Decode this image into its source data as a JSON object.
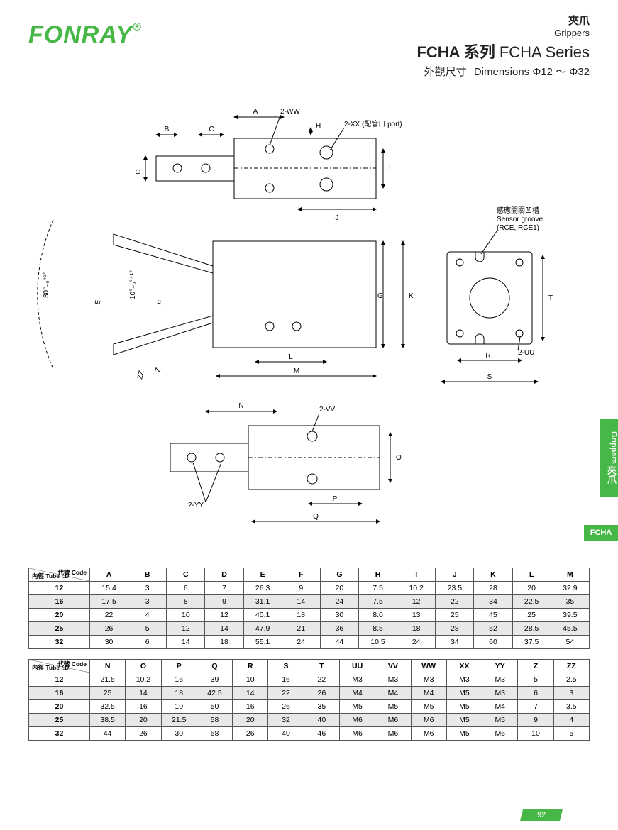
{
  "brand": "FONRAY",
  "brand_color": "#47b747",
  "header": {
    "cat_cn": "夾爪",
    "cat_en": "Grippers",
    "series_cn": "FCHA 系列",
    "series_en": "FCHA Series",
    "sub_cn": "外觀尺寸",
    "sub_en": "Dimensions  Φ12 ～ Φ32"
  },
  "side_tab": {
    "cn": "夾爪",
    "en": "Grippers"
  },
  "side_tab2": "FCHA",
  "page_number": "92",
  "diagram_labels": {
    "A": "A",
    "B": "B",
    "C": "C",
    "D": "D",
    "E": "E",
    "F": "F",
    "G": "G",
    "H": "H",
    "I": "I",
    "J": "J",
    "K": "K",
    "L": "L",
    "M": "M",
    "N": "N",
    "O": "O",
    "P": "P",
    "Q": "Q",
    "R": "R",
    "S": "S",
    "T": "T",
    "Z": "Z",
    "ZZ": "ZZ",
    "two_ww": "2-WW",
    "two_xx": "2-XX (配管口 port)",
    "two_vv": "2-VV",
    "two_yy": "2-YY",
    "two_uu": "2-UU",
    "sensor_cn": "感應開關凹槽",
    "sensor_en": "Sensor groove",
    "sensor_model": "(RCE, RCE1)",
    "ang30": "30°₋₀⁺³°",
    "ang10": "10°₋₀°⁺¹°"
  },
  "table1": {
    "corner_top": "代號 Code",
    "corner_bot": "內徑 Tube I.D.",
    "cols": [
      "A",
      "B",
      "C",
      "D",
      "E",
      "F",
      "G",
      "H",
      "I",
      "J",
      "K",
      "L",
      "M"
    ],
    "rows": [
      {
        "id": "12",
        "v": [
          "15.4",
          "3",
          "6",
          "7",
          "26.3",
          "9",
          "20",
          "7.5",
          "10.2",
          "23.5",
          "28",
          "20",
          "32.9"
        ]
      },
      {
        "id": "16",
        "v": [
          "17.5",
          "3",
          "8",
          "9",
          "31.1",
          "14",
          "24",
          "7.5",
          "12",
          "22",
          "34",
          "22.5",
          "35"
        ]
      },
      {
        "id": "20",
        "v": [
          "22",
          "4",
          "10",
          "12",
          "40.1",
          "18",
          "30",
          "8.0",
          "13",
          "25",
          "45",
          "25",
          "39.5"
        ]
      },
      {
        "id": "25",
        "v": [
          "26",
          "5",
          "12",
          "14",
          "47.9",
          "21",
          "36",
          "8.5",
          "18",
          "28",
          "52",
          "28.5",
          "45.5"
        ]
      },
      {
        "id": "32",
        "v": [
          "30",
          "6",
          "14",
          "18",
          "55.1",
          "24",
          "44",
          "10.5",
          "24",
          "34",
          "60",
          "37.5",
          "54"
        ]
      }
    ]
  },
  "table2": {
    "corner_top": "代號 Code",
    "corner_bot": "內徑 Tube I.D.",
    "cols": [
      "N",
      "O",
      "P",
      "Q",
      "R",
      "S",
      "T",
      "UU",
      "VV",
      "WW",
      "XX",
      "YY",
      "Z",
      "ZZ"
    ],
    "rows": [
      {
        "id": "12",
        "v": [
          "21.5",
          "10.2",
          "16",
          "39",
          "10",
          "16",
          "22",
          "M3",
          "M3",
          "M3",
          "M3",
          "M3",
          "5",
          "2.5"
        ]
      },
      {
        "id": "16",
        "v": [
          "25",
          "14",
          "18",
          "42.5",
          "14",
          "22",
          "26",
          "M4",
          "M4",
          "M4",
          "M5",
          "M3",
          "6",
          "3"
        ]
      },
      {
        "id": "20",
        "v": [
          "32.5",
          "16",
          "19",
          "50",
          "16",
          "26",
          "35",
          "M5",
          "M5",
          "M5",
          "M5",
          "M4",
          "7",
          "3.5"
        ]
      },
      {
        "id": "25",
        "v": [
          "38.5",
          "20",
          "21.5",
          "58",
          "20",
          "32",
          "40",
          "M6",
          "M6",
          "M6",
          "M5",
          "M5",
          "9",
          "4"
        ]
      },
      {
        "id": "32",
        "v": [
          "44",
          "26",
          "30",
          "68",
          "26",
          "40",
          "46",
          "M6",
          "M6",
          "M6",
          "M5",
          "M6",
          "10",
          "5"
        ]
      }
    ]
  },
  "style": {
    "stroke": "#000000",
    "stroke_width": 1,
    "grid_color": "#555555",
    "row_shade": "#e8e8e8",
    "text_color": "#222222"
  }
}
